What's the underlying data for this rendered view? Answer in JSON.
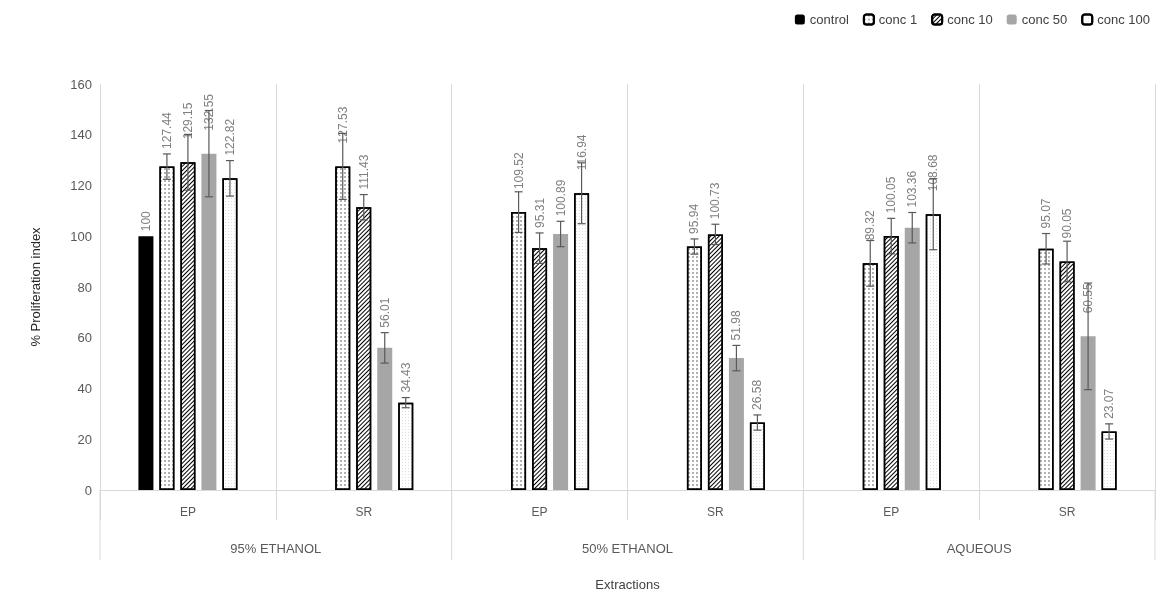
{
  "chart_data": {
    "type": "bar",
    "xlabel": "Extractions",
    "ylabel": "% Proliferation index",
    "categories": [
      "EP",
      "SR",
      "EP",
      "SR",
      "EP",
      "SR"
    ],
    "annotations": [
      "95% ETHANOL",
      "50% ETHANOL",
      "AQUEOUS"
    ],
    "series": [
      {
        "name": "control",
        "color": "#000000",
        "values": [
          100,
          null,
          null,
          null,
          null,
          null
        ],
        "errors": [
          null,
          null,
          null,
          null,
          null,
          null
        ]
      },
      {
        "name": "conc 1",
        "color": "#ffffff",
        "values": [
          127.44,
          127.53,
          109.52,
          95.94,
          89.32,
          95.07
        ],
        "errors": [
          5,
          13,
          8,
          3,
          9,
          6
        ]
      },
      {
        "name": "conc 10",
        "color": "#ffffff",
        "values": [
          129.15,
          111.43,
          95.31,
          100.73,
          100.05,
          90.05
        ],
        "errors": [
          11,
          5,
          6,
          4,
          7,
          8
        ]
      },
      {
        "name": "conc 50",
        "color": "#a6a6a6",
        "values": [
          132.55,
          56.01,
          100.89,
          51.98,
          103.36,
          60.55
        ],
        "errors": [
          17,
          6,
          5,
          5,
          6,
          21
        ]
      },
      {
        "name": "conc 100",
        "color": "#ffffff",
        "values": [
          122.82,
          34.43,
          116.94,
          26.58,
          108.68,
          23.07
        ],
        "errors": [
          7,
          2,
          12,
          3,
          14,
          3
        ]
      }
    ],
    "ylim": [
      0,
      160
    ],
    "yticks": [
      0,
      20,
      40,
      60,
      80,
      100,
      120,
      140,
      160
    ],
    "data_labels": true,
    "grid": "x",
    "legend": "top right"
  }
}
